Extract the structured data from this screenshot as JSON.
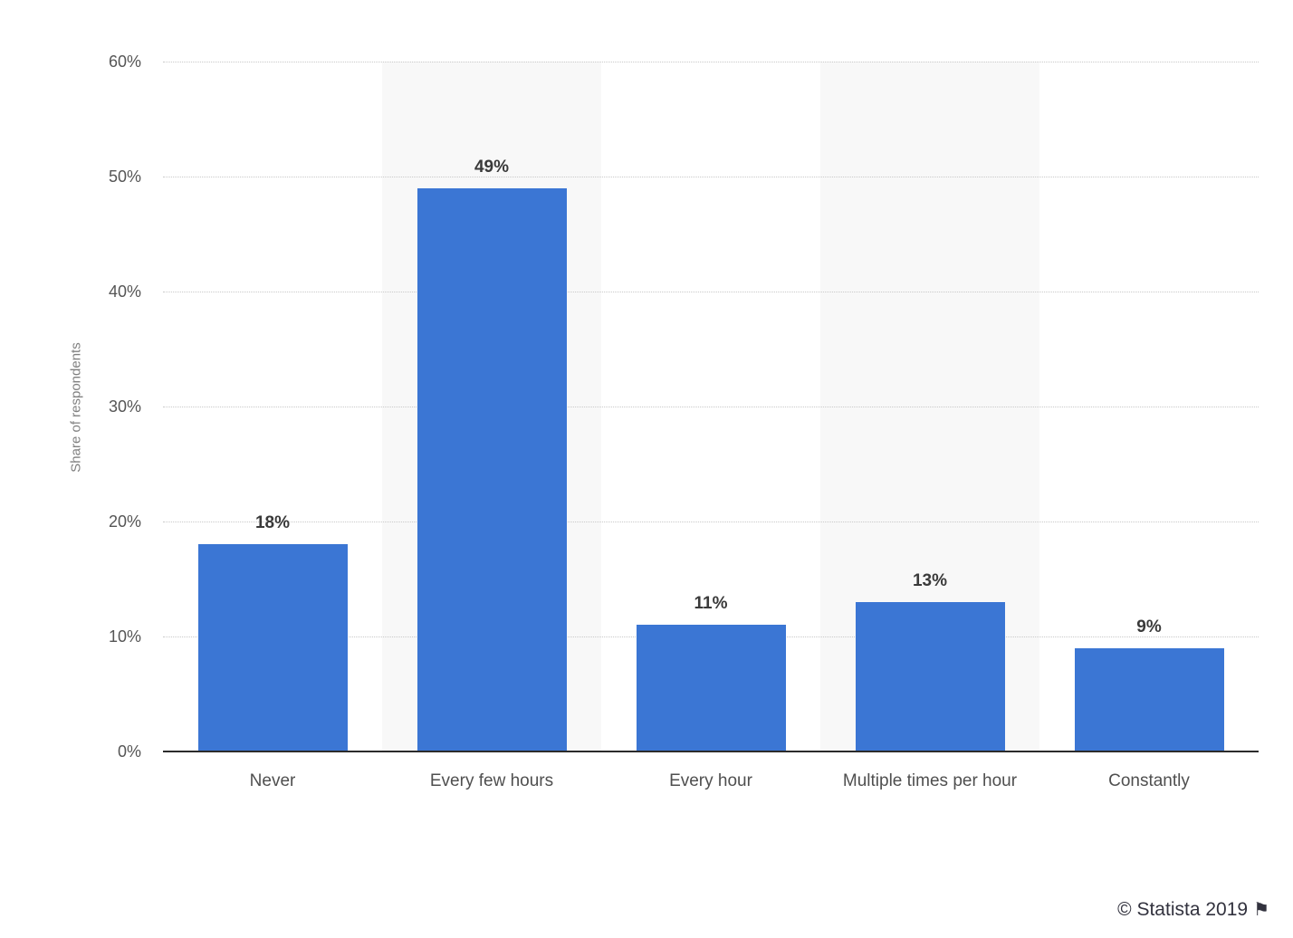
{
  "chart_data": {
    "type": "bar",
    "title": "",
    "categories": [
      "Never",
      "Every few hours",
      "Every hour",
      "Multiple times per hour",
      "Constantly"
    ],
    "values": [
      18,
      49,
      11,
      13,
      9
    ],
    "data_labels": [
      "18%",
      "49%",
      "11%",
      "13%",
      "9%"
    ],
    "xlabel": "",
    "ylabel": "Share of respondents",
    "ylim": [
      0,
      60
    ],
    "ytick_step": 10,
    "ytick_labels": [
      "0%",
      "10%",
      "20%",
      "30%",
      "40%",
      "50%",
      "60%"
    ],
    "grid": true,
    "gridline_style": "dotted",
    "legend": false,
    "bar_color": "#3b76d4",
    "stripe_color": "#f8f8f8",
    "striped_slots": [
      1,
      3
    ]
  },
  "footer": {
    "copyright": "© Statista 2019",
    "flag_icon": "⚑"
  }
}
